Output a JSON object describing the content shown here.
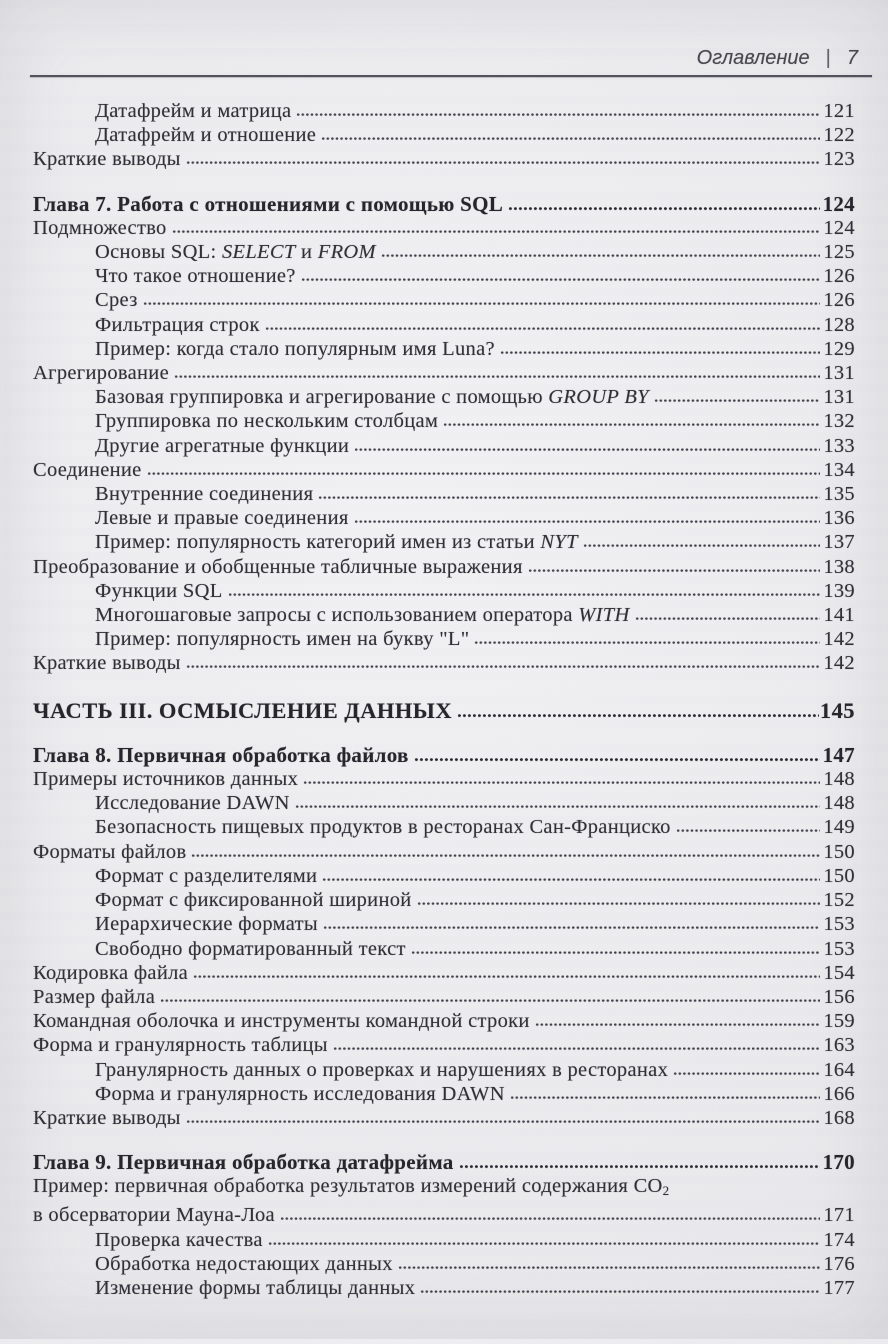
{
  "colors": {
    "paper": "#ebebee",
    "ink": "#2e2d34",
    "rule": "#50505a"
  },
  "header": {
    "title": "Оглавление",
    "divider": "|",
    "page_number": "7"
  },
  "toc_rows": [
    {
      "style": "plain",
      "indent": 1,
      "segments": [
        {
          "text": "Датафрейм и матрица"
        }
      ],
      "page": "121"
    },
    {
      "style": "plain",
      "indent": 1,
      "segments": [
        {
          "text": "Датафрейм и отношение"
        }
      ],
      "page": "122"
    },
    {
      "style": "plain",
      "indent": 0,
      "segments": [
        {
          "text": "Краткие выводы"
        }
      ],
      "page": "123"
    },
    {
      "style": "chapter",
      "indent": 0,
      "segments": [
        {
          "text": "Глава 7. Работа с отношениями с помощью SQL"
        }
      ],
      "page": "124"
    },
    {
      "style": "plain",
      "indent": 0,
      "segments": [
        {
          "text": "Подмножество"
        }
      ],
      "page": "124"
    },
    {
      "style": "plain",
      "indent": 1,
      "segments": [
        {
          "text": "Основы SQL: "
        },
        {
          "text": "SELECT",
          "italic": true
        },
        {
          "text": " и "
        },
        {
          "text": "FROM",
          "italic": true
        }
      ],
      "page": "125"
    },
    {
      "style": "plain",
      "indent": 1,
      "segments": [
        {
          "text": "Что такое отношение?"
        }
      ],
      "page": "126"
    },
    {
      "style": "plain",
      "indent": 1,
      "segments": [
        {
          "text": "Срез"
        }
      ],
      "page": "126"
    },
    {
      "style": "plain",
      "indent": 1,
      "segments": [
        {
          "text": "Фильтрация строк"
        }
      ],
      "page": "128"
    },
    {
      "style": "plain",
      "indent": 1,
      "segments": [
        {
          "text": "Пример: когда стало популярным имя Luna?"
        }
      ],
      "page": "129"
    },
    {
      "style": "plain",
      "indent": 0,
      "segments": [
        {
          "text": "Агрегирование"
        }
      ],
      "page": "131"
    },
    {
      "style": "plain",
      "indent": 1,
      "segments": [
        {
          "text": "Базовая группировка и агрегирование с помощью "
        },
        {
          "text": "GROUP BY",
          "italic": true
        }
      ],
      "page": "131"
    },
    {
      "style": "plain",
      "indent": 1,
      "segments": [
        {
          "text": "Группировка по нескольким столбцам"
        }
      ],
      "page": "132"
    },
    {
      "style": "plain",
      "indent": 1,
      "segments": [
        {
          "text": "Другие агрегатные функции"
        }
      ],
      "page": "133"
    },
    {
      "style": "plain",
      "indent": 0,
      "segments": [
        {
          "text": "Соединение"
        }
      ],
      "page": "134"
    },
    {
      "style": "plain",
      "indent": 1,
      "segments": [
        {
          "text": "Внутренние соединения"
        }
      ],
      "page": "135"
    },
    {
      "style": "plain",
      "indent": 1,
      "segments": [
        {
          "text": "Левые и правые соединения"
        }
      ],
      "page": "136"
    },
    {
      "style": "plain",
      "indent": 1,
      "segments": [
        {
          "text": "Пример: популярность категорий имен из статьи "
        },
        {
          "text": "NYT",
          "italic": true
        }
      ],
      "page": "137"
    },
    {
      "style": "plain",
      "indent": 0,
      "segments": [
        {
          "text": "Преобразование и обобщенные табличные выражения"
        }
      ],
      "page": "138"
    },
    {
      "style": "plain",
      "indent": 1,
      "segments": [
        {
          "text": "Функции SQL"
        }
      ],
      "page": "139"
    },
    {
      "style": "plain",
      "indent": 1,
      "segments": [
        {
          "text": "Многошаговые запросы с использованием оператора "
        },
        {
          "text": "WITH",
          "italic": true
        }
      ],
      "page": "141"
    },
    {
      "style": "plain",
      "indent": 1,
      "segments": [
        {
          "text": "Пример: популярность имен на букву \"L\""
        }
      ],
      "page": "142"
    },
    {
      "style": "plain",
      "indent": 0,
      "segments": [
        {
          "text": "Краткие выводы"
        }
      ],
      "page": "142"
    },
    {
      "style": "part",
      "indent": 0,
      "segments": [
        {
          "text": "ЧАСТЬ III. ОСМЫСЛЕНИЕ ДАННЫХ"
        }
      ],
      "page": "145"
    },
    {
      "style": "chapter",
      "indent": 0,
      "segments": [
        {
          "text": "Глава 8. Первичная обработка файлов"
        }
      ],
      "page": "147"
    },
    {
      "style": "plain",
      "indent": 0,
      "segments": [
        {
          "text": "Примеры источников данных"
        }
      ],
      "page": "148"
    },
    {
      "style": "plain",
      "indent": 1,
      "segments": [
        {
          "text": "Исследование DAWN"
        }
      ],
      "page": "148"
    },
    {
      "style": "plain",
      "indent": 1,
      "segments": [
        {
          "text": "Безопасность пищевых продуктов в ресторанах Сан-Франциско"
        }
      ],
      "page": "149"
    },
    {
      "style": "plain",
      "indent": 0,
      "segments": [
        {
          "text": "Форматы файлов"
        }
      ],
      "page": "150"
    },
    {
      "style": "plain",
      "indent": 1,
      "segments": [
        {
          "text": "Формат с разделителями"
        }
      ],
      "page": "150"
    },
    {
      "style": "plain",
      "indent": 1,
      "segments": [
        {
          "text": "Формат с фиксированной шириной"
        }
      ],
      "page": "152"
    },
    {
      "style": "plain",
      "indent": 1,
      "segments": [
        {
          "text": "Иерархические форматы"
        }
      ],
      "page": "153"
    },
    {
      "style": "plain",
      "indent": 1,
      "segments": [
        {
          "text": "Свободно форматированный текст"
        }
      ],
      "page": "153"
    },
    {
      "style": "plain",
      "indent": 0,
      "segments": [
        {
          "text": "Кодировка файла"
        }
      ],
      "page": "154"
    },
    {
      "style": "plain",
      "indent": 0,
      "segments": [
        {
          "text": "Размер файла"
        }
      ],
      "page": "156"
    },
    {
      "style": "plain",
      "indent": 0,
      "segments": [
        {
          "text": "Командная оболочка и инструменты командной строки"
        }
      ],
      "page": "159"
    },
    {
      "style": "plain",
      "indent": 0,
      "segments": [
        {
          "text": "Форма и гранулярность таблицы"
        }
      ],
      "page": "163"
    },
    {
      "style": "plain",
      "indent": 1,
      "segments": [
        {
          "text": "Гранулярность данных о проверках и нарушениях в ресторанах"
        }
      ],
      "page": "164"
    },
    {
      "style": "plain",
      "indent": 1,
      "segments": [
        {
          "text": "Форма и гранулярность исследования DAWN"
        }
      ],
      "page": "166"
    },
    {
      "style": "plain",
      "indent": 0,
      "segments": [
        {
          "text": "Краткие выводы"
        }
      ],
      "page": "168"
    },
    {
      "style": "chapter",
      "indent": 0,
      "segments": [
        {
          "text": "Глава 9. Первичная обработка датафрейма"
        }
      ],
      "page": "170"
    },
    {
      "style": "plain",
      "indent": 0,
      "no_leader": true,
      "segments": [
        {
          "text": "Пример: первичная обработка результатов измерений содержания CO"
        },
        {
          "text": "2",
          "subscript": true
        }
      ]
    },
    {
      "style": "plain",
      "indent": 0,
      "segments": [
        {
          "text": "в обсерватории Мауна-Лоа"
        }
      ],
      "page": "171"
    },
    {
      "style": "plain",
      "indent": 1,
      "segments": [
        {
          "text": "Проверка качества"
        }
      ],
      "page": "174"
    },
    {
      "style": "plain",
      "indent": 1,
      "segments": [
        {
          "text": "Обработка недостающих данных"
        }
      ],
      "page": "176"
    },
    {
      "style": "plain",
      "indent": 1,
      "segments": [
        {
          "text": "Изменение формы таблицы данных"
        }
      ],
      "page": "177"
    }
  ]
}
